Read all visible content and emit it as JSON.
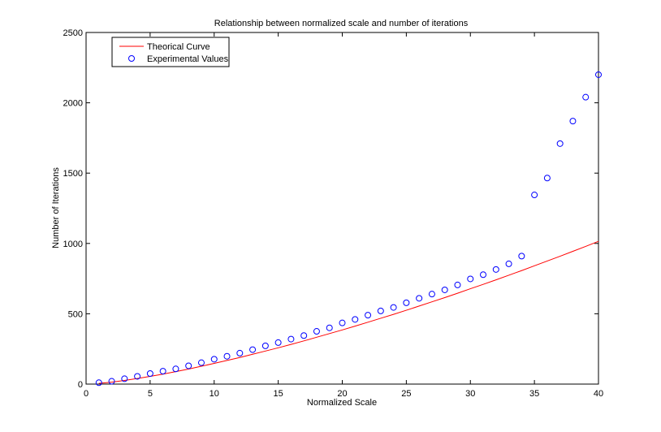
{
  "chart_data": {
    "type": "scatter",
    "title": "Relationship between normalized scale and number of iterations",
    "xlabel": "Normalized Scale",
    "ylabel": "Number of Iterations",
    "xlim": [
      0,
      40
    ],
    "ylim": [
      0,
      2500
    ],
    "xticks": [
      0,
      5,
      10,
      15,
      20,
      25,
      30,
      35,
      40
    ],
    "yticks": [
      0,
      500,
      1000,
      1500,
      2000,
      2500
    ],
    "grid": false,
    "legend_position": "top-left",
    "series": [
      {
        "name": "Theorical Curve",
        "kind": "line",
        "color": "#ff0000",
        "x": [
          1,
          2,
          3,
          4,
          5,
          6,
          7,
          8,
          9,
          10,
          11,
          12,
          13,
          14,
          15,
          16,
          17,
          18,
          19,
          20,
          21,
          22,
          23,
          24,
          25,
          26,
          27,
          28,
          29,
          30,
          31,
          32,
          33,
          34,
          35,
          36,
          37,
          38,
          39,
          40
        ],
        "y": [
          5,
          14,
          26,
          40,
          55,
          71,
          89,
          107,
          127,
          147,
          168,
          189,
          212,
          235,
          258,
          282,
          307,
          333,
          359,
          385,
          412,
          440,
          468,
          496,
          525,
          555,
          585,
          615,
          646,
          678,
          709,
          741,
          774,
          807,
          841,
          875,
          909,
          944,
          979,
          1015
        ]
      },
      {
        "name": "Experimental Values",
        "kind": "scatter",
        "color": "#0000ff",
        "marker": "circle-open",
        "x": [
          1,
          2,
          3,
          4,
          5,
          6,
          7,
          8,
          9,
          10,
          11,
          12,
          13,
          14,
          15,
          16,
          17,
          18,
          19,
          20,
          21,
          22,
          23,
          24,
          25,
          26,
          27,
          28,
          29,
          30,
          31,
          32,
          33,
          34,
          35,
          36,
          37,
          38,
          39,
          40
        ],
        "y": [
          10,
          20,
          38,
          55,
          75,
          92,
          108,
          130,
          152,
          177,
          198,
          220,
          245,
          272,
          295,
          320,
          345,
          375,
          400,
          435,
          460,
          490,
          520,
          545,
          578,
          610,
          640,
          670,
          705,
          748,
          778,
          815,
          855,
          910,
          1345,
          1465,
          1710,
          1870,
          2040,
          2200
        ]
      }
    ]
  }
}
